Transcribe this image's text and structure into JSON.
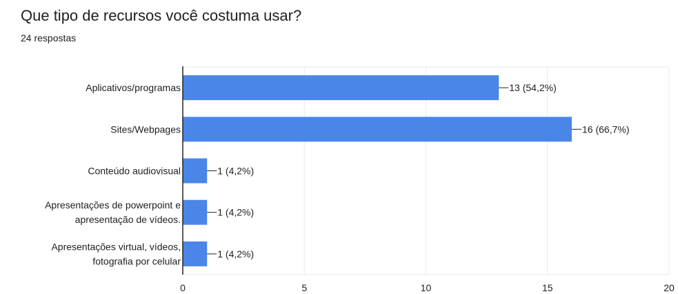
{
  "header": {
    "title": "Que tipo de recursos você costuma usar?",
    "responses": "24 respostas"
  },
  "colors": {
    "bar": "#4a86e8",
    "grid": "#e8eaed",
    "axis": "#202124"
  },
  "chart_data": {
    "type": "bar",
    "orientation": "horizontal",
    "title": "Que tipo de recursos você costuma usar?",
    "categories": [
      [
        "Aplicativos/programas"
      ],
      [
        "Sites/Webpages"
      ],
      [
        "Conteúdo audiovisual"
      ],
      [
        "Apresentações de powerpoint e",
        "apresentação de vídeos."
      ],
      [
        "Apresentações virtual, vídeos,",
        "fotografia por celular"
      ]
    ],
    "values": [
      13,
      16,
      1,
      1,
      1
    ],
    "value_labels": [
      "13 (54,2%)",
      "16 (66,7%)",
      "1 (4,2%)",
      "1 (4,2%)",
      "1 (4,2%)"
    ],
    "xlim": [
      0,
      20
    ],
    "xticks": [
      0,
      5,
      10,
      15,
      20
    ],
    "grid": true,
    "legend": "none"
  }
}
